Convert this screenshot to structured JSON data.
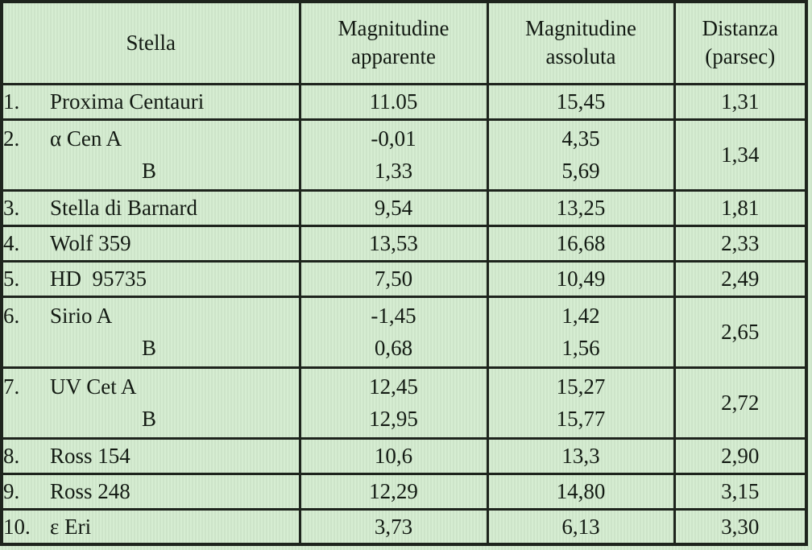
{
  "colors": {
    "background_green": "#d2e9ce",
    "grid_border": "#1e241d",
    "text": "#131a13"
  },
  "chart_data": {
    "type": "table",
    "columns": [
      "Stella",
      "Magnitudine apparente",
      "Magnitudine assoluta",
      "Distanza (parsec)"
    ],
    "rows": [
      {
        "num": "1.",
        "star": [
          "Proxima Centauri"
        ],
        "apparent": [
          "11.05"
        ],
        "absolute": [
          "15,45"
        ],
        "distance": "1,31"
      },
      {
        "num": "2.",
        "star": [
          "α Cen A",
          "B"
        ],
        "apparent": [
          "-0,01",
          "1,33"
        ],
        "absolute": [
          "4,35",
          "5,69"
        ],
        "distance": "1,34"
      },
      {
        "num": "3.",
        "star": [
          "Stella di Barnard"
        ],
        "apparent": [
          "9,54"
        ],
        "absolute": [
          "13,25"
        ],
        "distance": "1,81"
      },
      {
        "num": "4.",
        "star": [
          "Wolf 359"
        ],
        "apparent": [
          "13,53"
        ],
        "absolute": [
          "16,68"
        ],
        "distance": "2,33"
      },
      {
        "num": "5.",
        "star": [
          "HD  95735"
        ],
        "apparent": [
          "7,50"
        ],
        "absolute": [
          "10,49"
        ],
        "distance": "2,49"
      },
      {
        "num": "6.",
        "star": [
          "Sirio A",
          "B"
        ],
        "apparent": [
          "-1,45",
          "0,68"
        ],
        "absolute": [
          "1,42",
          "1,56"
        ],
        "distance": "2,65"
      },
      {
        "num": "7.",
        "star": [
          "UV Cet A",
          "B"
        ],
        "apparent": [
          "12,45",
          "12,95"
        ],
        "absolute": [
          "15,27",
          "15,77"
        ],
        "distance": "2,72"
      },
      {
        "num": "8.",
        "star": [
          "Ross 154"
        ],
        "apparent": [
          "10,6"
        ],
        "absolute": [
          "13,3"
        ],
        "distance": "2,90"
      },
      {
        "num": "9.",
        "star": [
          "Ross 248"
        ],
        "apparent": [
          "12,29"
        ],
        "absolute": [
          "14,80"
        ],
        "distance": "3,15"
      },
      {
        "num": "10.",
        "star": [
          "ε Eri"
        ],
        "apparent": [
          "3,73"
        ],
        "absolute": [
          "6,13"
        ],
        "distance": "3,30"
      }
    ]
  }
}
